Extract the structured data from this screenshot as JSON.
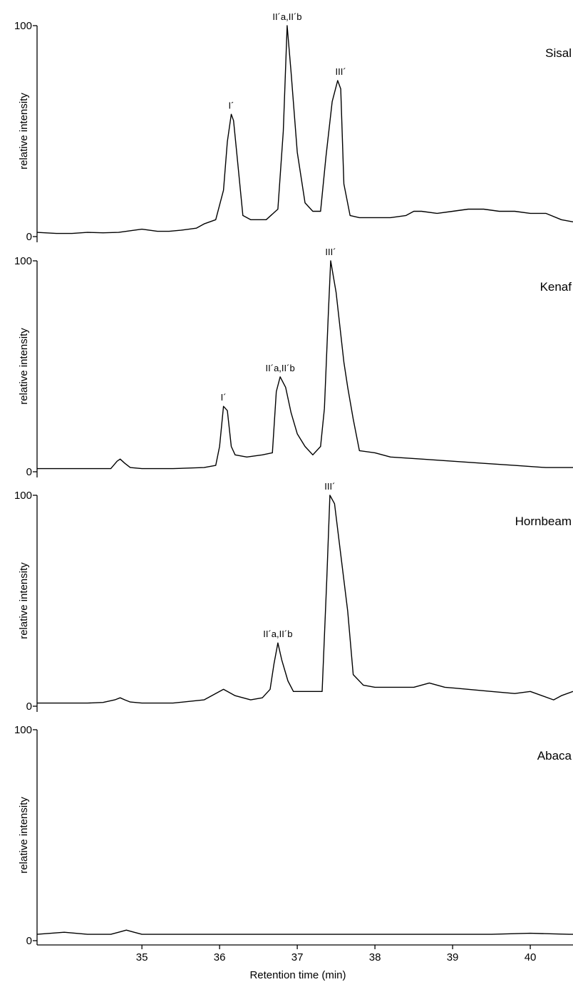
{
  "chart_data": {
    "type": "line",
    "xlabel": "Retention time (min)",
    "ylabel": "relative intensity",
    "xlim": [
      33.65,
      40.55
    ],
    "x_ticks": [
      35,
      36,
      37,
      38,
      39,
      40
    ],
    "x_tick_labels": [
      "35",
      "36",
      "37",
      "38",
      "39",
      "40"
    ],
    "ylim": [
      0,
      100
    ],
    "y_tick_labels": [
      "0",
      "100"
    ],
    "grid": false,
    "panels": [
      {
        "name": "Sisal",
        "x": [
          33.65,
          33.9,
          34.1,
          34.3,
          34.5,
          34.7,
          34.9,
          35.0,
          35.1,
          35.2,
          35.35,
          35.5,
          35.7,
          35.8,
          35.95,
          36.05,
          36.1,
          36.15,
          36.18,
          36.22,
          36.3,
          36.4,
          36.6,
          36.75,
          36.82,
          36.87,
          36.92,
          37.0,
          37.1,
          37.2,
          37.3,
          37.37,
          37.45,
          37.52,
          37.56,
          37.6,
          37.68,
          37.8,
          38.0,
          38.2,
          38.4,
          38.5,
          38.6,
          38.8,
          39.0,
          39.2,
          39.4,
          39.6,
          39.8,
          40.0,
          40.2,
          40.4,
          40.55
        ],
        "y": [
          2,
          1.5,
          1.5,
          2,
          1.8,
          2,
          3,
          3.5,
          3,
          2.5,
          2.5,
          3,
          4,
          6,
          8,
          22,
          45,
          58,
          55,
          40,
          10,
          8,
          8,
          13,
          50,
          100,
          78,
          40,
          16,
          12,
          12,
          38,
          64,
          74,
          70,
          25,
          10,
          9,
          9,
          9,
          10,
          12,
          12,
          11,
          12,
          13,
          13,
          12,
          12,
          11,
          11,
          8,
          7
        ]
      },
      {
        "name": "Kenaf",
        "x": [
          33.65,
          34.0,
          34.3,
          34.5,
          34.6,
          34.68,
          34.72,
          34.78,
          34.85,
          35.0,
          35.4,
          35.8,
          35.95,
          36.0,
          36.05,
          36.1,
          36.15,
          36.2,
          36.35,
          36.55,
          36.68,
          36.73,
          36.78,
          36.85,
          36.92,
          37.0,
          37.1,
          37.2,
          37.3,
          37.35,
          37.4,
          37.43,
          37.5,
          37.6,
          37.65,
          37.72,
          37.8,
          38.0,
          38.2,
          38.6,
          39.0,
          39.4,
          39.8,
          40.2,
          40.55
        ],
        "y": [
          1.5,
          1.5,
          1.5,
          1.5,
          1.5,
          5,
          6,
          4,
          2,
          1.5,
          1.5,
          2,
          3,
          12,
          31,
          29,
          12,
          8,
          7,
          8,
          9,
          38,
          45,
          40,
          28,
          18,
          12,
          8,
          12,
          30,
          75,
          100,
          85,
          52,
          40,
          25,
          10,
          9,
          7,
          6,
          5,
          4,
          3,
          2,
          2
        ]
      },
      {
        "name": "Hornbeam",
        "x": [
          33.65,
          34.0,
          34.3,
          34.5,
          34.65,
          34.72,
          34.78,
          34.85,
          35.0,
          35.4,
          35.8,
          36.05,
          36.2,
          36.4,
          36.55,
          36.65,
          36.7,
          36.75,
          36.8,
          36.88,
          36.95,
          37.1,
          37.25,
          37.32,
          37.38,
          37.42,
          37.48,
          37.55,
          37.65,
          37.72,
          37.85,
          38.0,
          38.2,
          38.5,
          38.7,
          38.9,
          39.2,
          39.5,
          39.8,
          40.0,
          40.3,
          40.4,
          40.55
        ],
        "y": [
          1.5,
          1.5,
          1.5,
          1.8,
          3,
          4,
          3,
          2,
          1.5,
          1.5,
          3,
          8,
          5,
          3,
          4,
          8,
          20,
          30,
          22,
          12,
          7,
          7,
          7,
          7,
          60,
          100,
          96,
          75,
          45,
          15,
          10,
          9,
          9,
          9,
          11,
          9,
          8,
          7,
          6,
          7,
          3,
          5,
          7
        ]
      },
      {
        "name": "Abaca",
        "x": [
          33.65,
          34.0,
          34.3,
          34.6,
          34.7,
          34.8,
          34.9,
          35.0,
          35.5,
          36.0,
          36.5,
          37.0,
          37.5,
          38.0,
          38.5,
          39.0,
          39.5,
          40.0,
          40.5,
          40.55
        ],
        "y": [
          3,
          4,
          3,
          3,
          4,
          5,
          4,
          3,
          3,
          3,
          3,
          3,
          3,
          3,
          3,
          3,
          3,
          3.5,
          3,
          3
        ]
      }
    ],
    "annotations": [
      {
        "panel": 0,
        "label": "I´",
        "x": 36.15,
        "y": 58
      },
      {
        "panel": 0,
        "label": "II´a,II´b",
        "x": 36.87,
        "y": 100
      },
      {
        "panel": 0,
        "label": "III´",
        "x": 37.56,
        "y": 74
      },
      {
        "panel": 1,
        "label": "I´",
        "x": 36.05,
        "y": 31
      },
      {
        "panel": 1,
        "label": "II´a,II´b",
        "x": 36.78,
        "y": 45
      },
      {
        "panel": 1,
        "label": "III´",
        "x": 37.43,
        "y": 100
      },
      {
        "panel": 2,
        "label": "II´a,II´b",
        "x": 36.75,
        "y": 30
      },
      {
        "panel": 2,
        "label": "III´",
        "x": 37.42,
        "y": 100
      }
    ]
  }
}
